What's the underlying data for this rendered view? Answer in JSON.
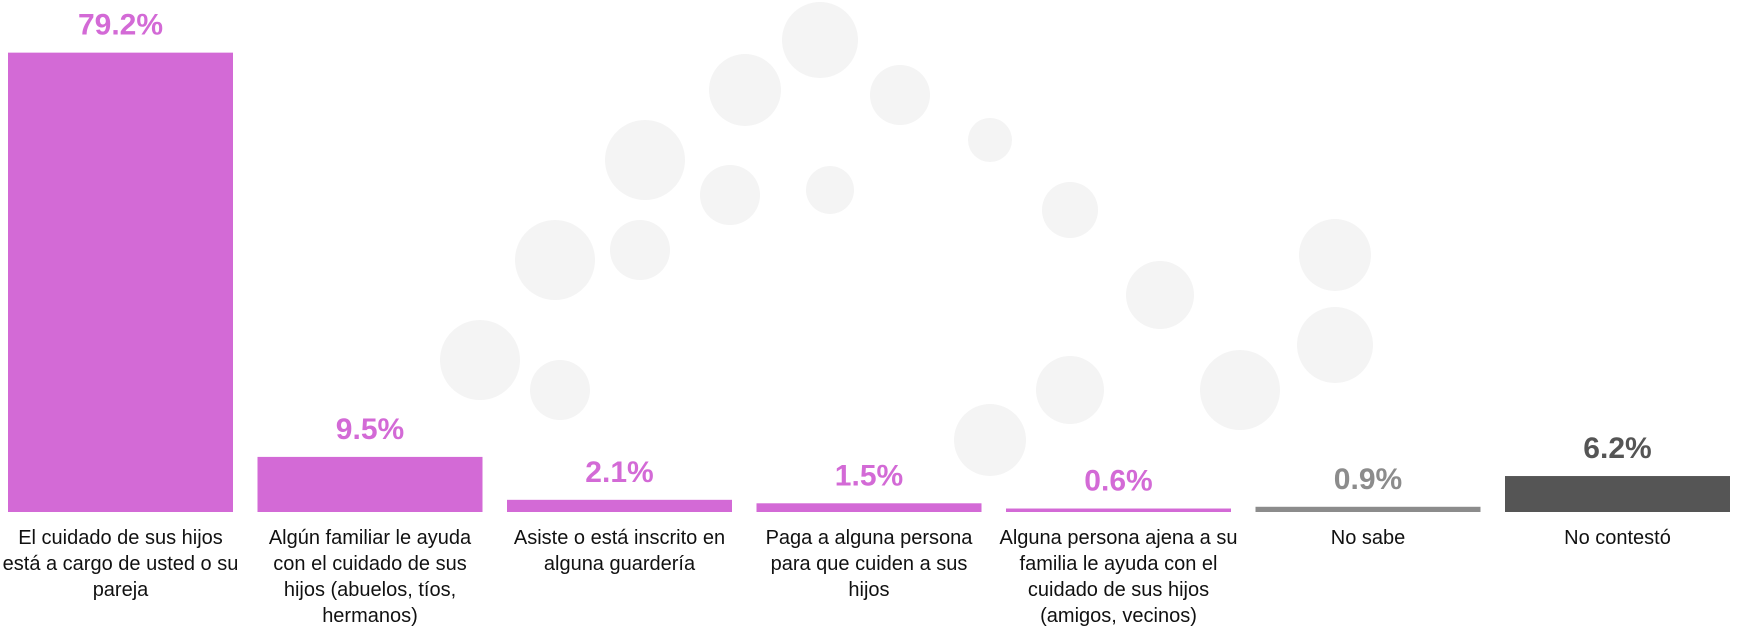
{
  "chart_data": {
    "type": "bar",
    "categories": [
      "El cuidado de sus hijos está a cargo de usted o su pareja",
      "Algún familiar le ayuda con el cuidado de sus hijos (abuelos, tíos, hermanos)",
      "Asiste o está inscrito en alguna guardería",
      "Paga a alguna persona para que cuiden a sus hijos",
      "Alguna persona ajena a su familia le ayuda con el cuidado de sus hijos (amigos, vecinos)",
      "No sabe",
      "No contestó"
    ],
    "values": [
      79.2,
      9.5,
      2.1,
      1.5,
      0.6,
      0.9,
      6.2
    ],
    "value_labels": [
      "79.2%",
      "9.5%",
      "2.1%",
      "1.5%",
      "0.6%",
      "0.9%",
      "6.2%"
    ],
    "colors": [
      "#d36ad6",
      "#d36ad6",
      "#d36ad6",
      "#d36ad6",
      "#d36ad6",
      "#8c8c8c",
      "#555555"
    ]
  }
}
